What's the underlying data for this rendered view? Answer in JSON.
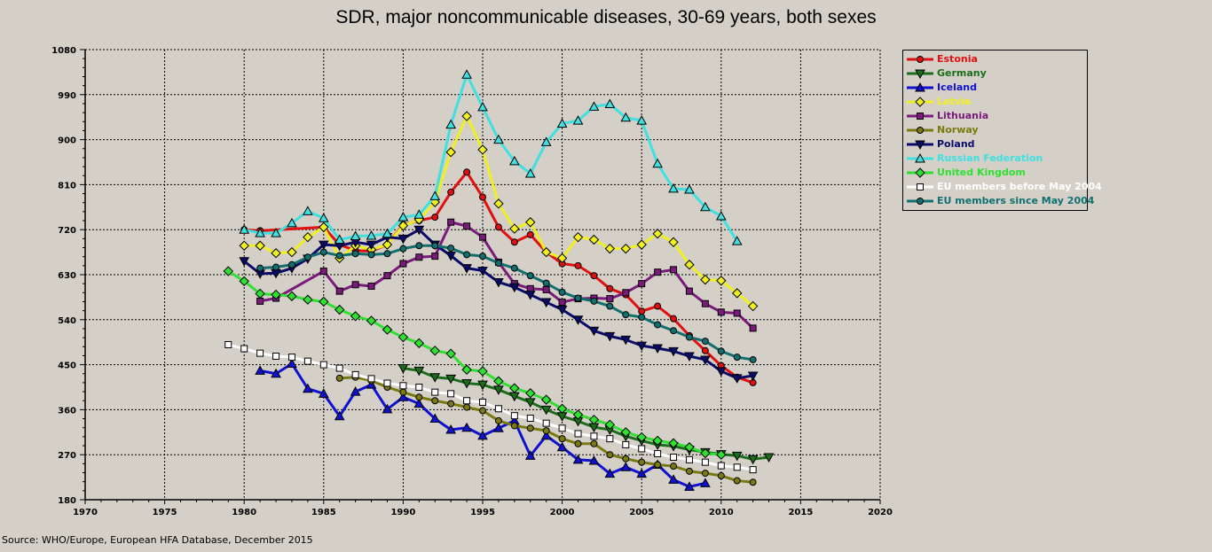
{
  "chart_data": {
    "type": "line",
    "title": "SDR, major noncommunicable diseases, 30-69 years, both sexes",
    "xlabel": "",
    "ylabel": "",
    "xlim": [
      1970,
      2020
    ],
    "ylim": [
      180,
      1080
    ],
    "x_ticks": [
      "1970",
      "1975",
      "1980",
      "1985",
      "1990",
      "1995",
      "2000",
      "2005",
      "2010",
      "2015",
      "2020"
    ],
    "y_ticks": [
      "180",
      "270",
      "360",
      "450",
      "540",
      "630",
      "720",
      "810",
      "900",
      "990",
      "1080"
    ],
    "grid": true,
    "legend_position": "top-right",
    "series": [
      {
        "name": "Estonia",
        "color": "#e01010",
        "marker": "circle",
        "x": [
          1980,
          1981,
          1985,
          1986,
          1987,
          1988,
          1989,
          1990,
          1991,
          1992,
          1993,
          1994,
          1995,
          1996,
          1997,
          1998,
          1999,
          2000,
          2001,
          2002,
          2003,
          2004,
          2005,
          2006,
          2007,
          2008,
          2009,
          2010,
          2011,
          2012
        ],
        "y": [
          720,
          718,
          725,
          690,
          678,
          677,
          690,
          730,
          738,
          745,
          795,
          835,
          785,
          725,
          695,
          710,
          675,
          652,
          648,
          628,
          602,
          590,
          557,
          567,
          542,
          508,
          478,
          448,
          425,
          414
        ]
      },
      {
        "name": "Germany",
        "color": "#1a6e1a",
        "marker": "triangle-down",
        "x": [
          1990,
          1991,
          1992,
          1993,
          1994,
          1995,
          1996,
          1997,
          1998,
          1999,
          2000,
          2001,
          2002,
          2003,
          2004,
          2005,
          2006,
          2007,
          2008,
          2009,
          2010,
          2011,
          2012,
          2013
        ],
        "y": [
          443,
          438,
          425,
          422,
          413,
          410,
          400,
          387,
          375,
          360,
          347,
          337,
          325,
          320,
          307,
          298,
          290,
          287,
          280,
          275,
          271,
          268,
          261,
          265
        ]
      },
      {
        "name": "Iceland",
        "color": "#1010d0",
        "marker": "triangle-up",
        "x": [
          1981,
          1982,
          1983,
          1984,
          1985,
          1986,
          1987,
          1988,
          1989,
          1990,
          1991,
          1992,
          1993,
          1994,
          1995,
          1996,
          1997,
          1998,
          1999,
          2000,
          2001,
          2002,
          2003,
          2004,
          2005,
          2006,
          2007,
          2008,
          2009
        ],
        "y": [
          438,
          432,
          452,
          402,
          392,
          347,
          396,
          410,
          361,
          385,
          372,
          342,
          320,
          324,
          308,
          323,
          338,
          268,
          308,
          285,
          260,
          258,
          232,
          245,
          232,
          250,
          220,
          206,
          213
        ]
      },
      {
        "name": "Latvia",
        "color": "#f0f020",
        "marker": "diamond",
        "x": [
          1980,
          1981,
          1982,
          1983,
          1984,
          1985,
          1986,
          1987,
          1988,
          1989,
          1990,
          1991,
          1992,
          1993,
          1994,
          1995,
          1996,
          1997,
          1998,
          1999,
          2000,
          2001,
          2002,
          2003,
          2004,
          2005,
          2006,
          2007,
          2008,
          2009,
          2010,
          2011,
          2012
        ],
        "y": [
          688,
          688,
          673,
          675,
          705,
          725,
          663,
          688,
          680,
          690,
          728,
          740,
          775,
          875,
          947,
          880,
          772,
          722,
          735,
          675,
          663,
          705,
          700,
          682,
          682,
          690,
          712,
          695,
          650,
          620,
          618,
          593,
          567
        ]
      },
      {
        "name": "Lithuania",
        "color": "#7a1a7a",
        "marker": "square",
        "x": [
          1981,
          1982,
          1985,
          1986,
          1987,
          1988,
          1989,
          1990,
          1991,
          1992,
          1993,
          1994,
          1995,
          1996,
          1997,
          1998,
          1999,
          2000,
          2001,
          2002,
          2003,
          2004,
          2005,
          2006,
          2007,
          2008,
          2009,
          2010,
          2011,
          2012
        ],
        "y": [
          577,
          583,
          637,
          597,
          610,
          607,
          628,
          652,
          665,
          667,
          735,
          727,
          705,
          655,
          612,
          602,
          600,
          575,
          582,
          583,
          582,
          594,
          612,
          635,
          640,
          597,
          572,
          555,
          553,
          523
        ]
      },
      {
        "name": "Norway",
        "color": "#7a7a10",
        "marker": "circle",
        "x": [
          1986,
          1987,
          1988,
          1989,
          1990,
          1991,
          1992,
          1993,
          1994,
          1995,
          1996,
          1997,
          1998,
          1999,
          2000,
          2001,
          2002,
          2003,
          2004,
          2005,
          2006,
          2007,
          2008,
          2009,
          2010,
          2011,
          2012
        ],
        "y": [
          423,
          425,
          418,
          405,
          395,
          385,
          378,
          372,
          365,
          358,
          338,
          328,
          323,
          318,
          302,
          292,
          292,
          270,
          262,
          255,
          250,
          247,
          237,
          233,
          228,
          218,
          215
        ]
      },
      {
        "name": "Poland",
        "color": "#0a0a6a",
        "marker": "triangle-down",
        "x": [
          1980,
          1981,
          1982,
          1983,
          1984,
          1985,
          1986,
          1987,
          1988,
          1989,
          1990,
          1991,
          1992,
          1993,
          1994,
          1995,
          1996,
          1997,
          1998,
          1999,
          2000,
          2001,
          2002,
          2003,
          2004,
          2005,
          2006,
          2007,
          2008,
          2009,
          2010,
          2011,
          2012
        ],
        "y": [
          657,
          632,
          633,
          643,
          662,
          690,
          688,
          695,
          690,
          705,
          702,
          720,
          690,
          668,
          643,
          638,
          615,
          605,
          590,
          575,
          560,
          540,
          518,
          507,
          500,
          488,
          483,
          477,
          467,
          460,
          437,
          423,
          428
        ]
      },
      {
        "name": "Russian Federation",
        "color": "#40e0e0",
        "marker": "triangle-up",
        "x": [
          1980,
          1981,
          1982,
          1983,
          1984,
          1985,
          1986,
          1987,
          1988,
          1989,
          1990,
          1991,
          1992,
          1993,
          1994,
          1995,
          1996,
          1997,
          1998,
          1999,
          2000,
          2001,
          2002,
          2003,
          2004,
          2005,
          2006,
          2007,
          2008,
          2009,
          2010,
          2011
        ],
        "y": [
          720,
          713,
          713,
          733,
          757,
          743,
          700,
          707,
          708,
          712,
          745,
          750,
          787,
          930,
          1030,
          965,
          900,
          857,
          832,
          895,
          932,
          938,
          966,
          971,
          944,
          938,
          852,
          802,
          800,
          765,
          747,
          697
        ]
      },
      {
        "name": "United Kingdom",
        "color": "#30e030",
        "marker": "diamond",
        "x": [
          1979,
          1980,
          1981,
          1982,
          1983,
          1984,
          1985,
          1986,
          1987,
          1988,
          1989,
          1990,
          1991,
          1992,
          1993,
          1994,
          1995,
          1996,
          1997,
          1998,
          1999,
          2000,
          2001,
          2002,
          2003,
          2004,
          2005,
          2006,
          2007,
          2008,
          2009,
          2010
        ],
        "y": [
          637,
          617,
          592,
          590,
          587,
          580,
          576,
          560,
          547,
          538,
          520,
          505,
          493,
          478,
          472,
          440,
          437,
          417,
          403,
          393,
          380,
          362,
          350,
          340,
          330,
          315,
          305,
          298,
          293,
          285,
          273,
          270
        ]
      },
      {
        "name": "EU members before May 2004",
        "color": "#ffffff",
        "marker": "open-square",
        "x": [
          1979,
          1980,
          1981,
          1982,
          1983,
          1984,
          1985,
          1986,
          1987,
          1988,
          1989,
          1990,
          1991,
          1992,
          1993,
          1994,
          1995,
          1996,
          1997,
          1998,
          1999,
          2000,
          2001,
          2002,
          2003,
          2004,
          2005,
          2006,
          2007,
          2008,
          2009,
          2010,
          2011,
          2012
        ],
        "y": [
          490,
          482,
          473,
          467,
          465,
          457,
          450,
          443,
          430,
          422,
          413,
          408,
          405,
          395,
          392,
          378,
          375,
          362,
          348,
          343,
          333,
          323,
          312,
          307,
          302,
          290,
          282,
          272,
          265,
          260,
          255,
          248,
          245,
          240
        ]
      },
      {
        "name": "EU members since May 2004",
        "color": "#107070",
        "marker": "circle",
        "x": [
          1981,
          1982,
          1983,
          1984,
          1985,
          1986,
          1987,
          1988,
          1989,
          1990,
          1991,
          1992,
          1993,
          1994,
          1995,
          1996,
          1997,
          1998,
          1999,
          2000,
          2001,
          2002,
          2003,
          2004,
          2005,
          2006,
          2007,
          2008,
          2009,
          2010,
          2011,
          2012
        ],
        "y": [
          643,
          645,
          650,
          665,
          675,
          668,
          672,
          670,
          672,
          682,
          688,
          688,
          683,
          670,
          667,
          653,
          643,
          628,
          613,
          595,
          583,
          577,
          567,
          550,
          545,
          530,
          518,
          505,
          497,
          477,
          465,
          460
        ]
      }
    ]
  },
  "source_note": "Source: WHO/Europe, European HFA Database, December 2015"
}
